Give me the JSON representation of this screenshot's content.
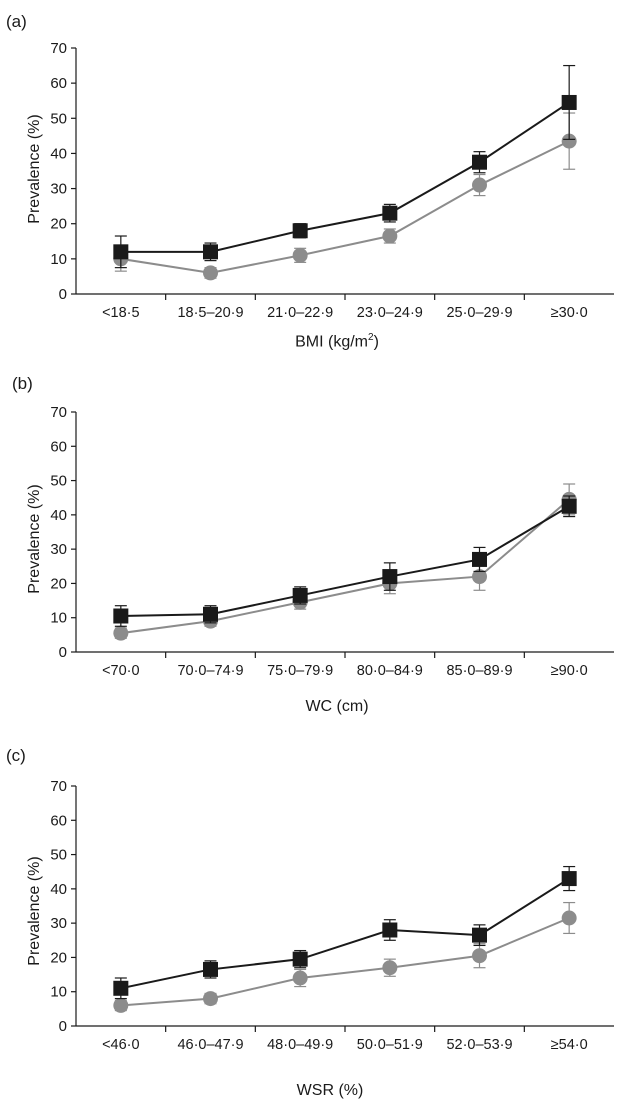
{
  "chart_data": [
    {
      "type": "line",
      "panel_label": "(a)",
      "ylabel": "Prevalence (%)",
      "xlabel": "BMI (kg/m",
      "xlabel_sup": "2",
      "xlabel_tail": ")",
      "ylim": [
        0,
        70
      ],
      "yticks": [
        "0",
        "10",
        "20",
        "30",
        "40",
        "50",
        "60",
        "70"
      ],
      "categories": [
        "<18·5",
        "18·5–20·9",
        "21·0–22·9",
        "23·0–24·9",
        "25·0–29·9",
        "≥30·0"
      ],
      "series": [
        {
          "marker": "square",
          "color": "#1a1a1a",
          "values": [
            12,
            12,
            18,
            23,
            37.5,
            54.5
          ],
          "errors": [
            4.5,
            2.5,
            2,
            2.5,
            3,
            10.5
          ]
        },
        {
          "marker": "circle",
          "color": "#8c8c8c",
          "values": [
            10,
            6,
            11,
            16.5,
            31,
            43.5
          ],
          "errors": [
            3.5,
            1.5,
            2,
            2,
            3,
            8
          ]
        }
      ]
    },
    {
      "type": "line",
      "panel_label": "(b)",
      "ylabel": "Prevalence (%)",
      "xlabel": "WC (cm)",
      "ylim": [
        0,
        70
      ],
      "yticks": [
        "0",
        "10",
        "20",
        "30",
        "40",
        "50",
        "60",
        "70"
      ],
      "categories": [
        "<70·0",
        "70·0–74·9",
        "75·0–79·9",
        "80·0–84·9",
        "85·0–89·9",
        "≥90·0"
      ],
      "series": [
        {
          "marker": "square",
          "color": "#1a1a1a",
          "values": [
            10.5,
            11,
            16.5,
            22,
            27,
            42.5
          ],
          "errors": [
            3,
            2.5,
            2.5,
            4,
            3.5,
            3
          ]
        },
        {
          "marker": "circle",
          "color": "#8c8c8c",
          "values": [
            5.5,
            9,
            14.5,
            20,
            22,
            44.5
          ],
          "errors": [
            1.5,
            1.5,
            2,
            3,
            4,
            4.5
          ]
        }
      ]
    },
    {
      "type": "line",
      "panel_label": "(c)",
      "ylabel": "Prevalence (%)",
      "xlabel": "WSR (%)",
      "ylim": [
        0,
        70
      ],
      "yticks": [
        "0",
        "10",
        "20",
        "30",
        "40",
        "50",
        "60",
        "70"
      ],
      "categories": [
        "<46·0",
        "46·0–47·9",
        "48·0–49·9",
        "50·0–51·9",
        "52·0–53·9",
        "≥54·0"
      ],
      "series": [
        {
          "marker": "square",
          "color": "#1a1a1a",
          "values": [
            11,
            16.5,
            19.5,
            28,
            26.5,
            43
          ],
          "errors": [
            3,
            2.5,
            2.5,
            3,
            3,
            3.5
          ]
        },
        {
          "marker": "circle",
          "color": "#8c8c8c",
          "values": [
            6,
            8,
            14,
            17,
            20.5,
            31.5
          ],
          "errors": [
            1.5,
            1.5,
            2.5,
            2.5,
            3.5,
            4.5
          ]
        }
      ]
    }
  ]
}
